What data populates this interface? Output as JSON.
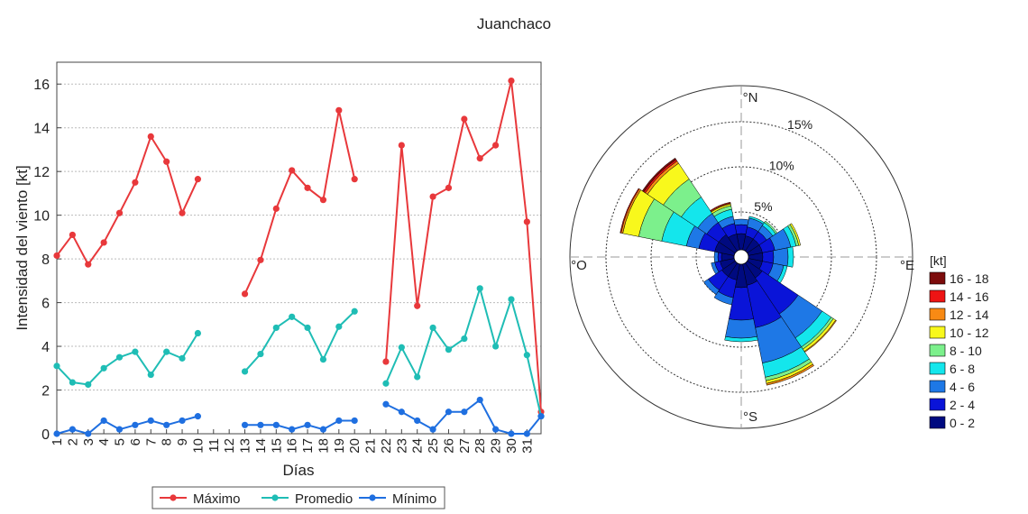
{
  "title": "Juanchaco",
  "chart_data": [
    {
      "type": "line",
      "xlabel": "Días",
      "ylabel": "Intensidad del viento [kt]",
      "xlim": [
        1,
        31
      ],
      "ylim": [
        0,
        17
      ],
      "x": [
        1,
        2,
        3,
        4,
        5,
        6,
        7,
        8,
        9,
        10,
        11,
        12,
        13,
        14,
        15,
        16,
        17,
        18,
        19,
        20,
        21,
        22,
        23,
        24,
        25,
        26,
        27,
        28,
        29,
        30,
        31
      ],
      "x_tick_labels": [
        "1",
        "2",
        "3",
        "4",
        "5",
        "6",
        "7",
        "8",
        "9",
        "10",
        "11",
        "12",
        "13",
        "14",
        "15",
        "16",
        "17",
        "18",
        "19",
        "20",
        "21",
        "22",
        "23",
        "24",
        "25",
        "26",
        "27",
        "28",
        "29",
        "30",
        "31"
      ],
      "y_ticks": [
        0,
        2,
        4,
        6,
        8,
        10,
        12,
        14,
        16
      ],
      "grid": "horizontal dotted",
      "legend_position": "bottom",
      "series": [
        {
          "name": "Máximo",
          "color": "#e8383b",
          "values": [
            8.15,
            9.1,
            7.75,
            8.75,
            10.1,
            11.5,
            13.6,
            12.45,
            10.1,
            11.65,
            null,
            null,
            6.4,
            7.95,
            10.3,
            12.05,
            11.25,
            10.7,
            14.8,
            11.65,
            null,
            3.3,
            13.2,
            5.85,
            10.85,
            11.25,
            14.4,
            12.6,
            13.2,
            16.15,
            9.7
          ],
          "end_value": 1.0
        },
        {
          "name": "Promedio",
          "color": "#1fbdb5",
          "values": [
            3.1,
            2.35,
            2.25,
            3.0,
            3.5,
            3.75,
            2.7,
            3.75,
            3.45,
            4.6,
            null,
            null,
            2.85,
            3.65,
            4.85,
            5.35,
            4.85,
            3.4,
            4.9,
            5.6,
            null,
            2.3,
            3.95,
            2.6,
            4.85,
            3.85,
            4.35,
            6.65,
            4.0,
            6.15,
            3.6
          ],
          "end_value": 0.8
        },
        {
          "name": "Mínimo",
          "color": "#1f6fe0",
          "values": [
            0.0,
            0.2,
            0.0,
            0.6,
            0.2,
            0.4,
            0.6,
            0.4,
            0.6,
            0.8,
            null,
            null,
            0.4,
            0.4,
            0.4,
            0.2,
            0.4,
            0.2,
            0.6,
            0.6,
            null,
            1.35,
            1.0,
            0.6,
            0.2,
            1.0,
            1.0,
            1.55,
            0.2,
            0.0,
            0.0
          ],
          "end_value": 0.8
        }
      ]
    },
    {
      "type": "wind_rose",
      "directions": [
        "N",
        "NNE",
        "NE",
        "ENE",
        "E",
        "ESE",
        "SE",
        "SSE",
        "S",
        "SSW",
        "SW",
        "WSW",
        "W",
        "WNW",
        "NW",
        "NNW"
      ],
      "direction_labels": {
        "N": "°N",
        "E": "°E",
        "S": "°S",
        "W": "°O"
      },
      "radial_ticks_percent": [
        5,
        10,
        15
      ],
      "radial_tick_labels": [
        "5%",
        "10%",
        "15%"
      ],
      "outer_ring_percent": 19,
      "legend_title": "[kt]",
      "bins": [
        {
          "label": "0 - 2",
          "color": "#000a80"
        },
        {
          "label": "2 - 4",
          "color": "#0a14d8"
        },
        {
          "label": "4 - 6",
          "color": "#1e78e6"
        },
        {
          "label": "6 - 8",
          "color": "#14e6ec"
        },
        {
          "label": "8 - 10",
          "color": "#7cf08c"
        },
        {
          "label": "10 - 12",
          "color": "#f8f81c"
        },
        {
          "label": "12 - 14",
          "color": "#f88a14"
        },
        {
          "label": "14 - 16",
          "color": "#ee1414"
        },
        {
          "label": "16 - 18",
          "color": "#7c0c0c"
        }
      ],
      "cumulative_percent": {
        "N": [
          2.6,
          3.6,
          4.2,
          4.2,
          4.2,
          4.2,
          4.2,
          4.2,
          4.2
        ],
        "NNE": [
          2.4,
          3.4,
          4.4,
          4.6,
          4.6,
          4.6,
          4.6,
          4.6,
          4.6
        ],
        "NE": [
          2.4,
          3.4,
          4.2,
          4.6,
          4.8,
          4.8,
          4.8,
          4.8,
          4.8
        ],
        "ENE": [
          2.4,
          3.8,
          5.6,
          6.2,
          6.5,
          6.7,
          6.7,
          6.7,
          6.7
        ],
        "E": [
          2.4,
          3.6,
          5.2,
          5.8,
          5.8,
          5.8,
          5.8,
          5.8,
          5.8
        ],
        "ESE": [
          2.4,
          3.6,
          4.8,
          5.2,
          5.2,
          5.2,
          5.2,
          5.2,
          5.2
        ],
        "SE": [
          2.8,
          7.6,
          10.8,
          12.0,
          12.3,
          12.6,
          12.7,
          12.7,
          12.7
        ],
        "SSE": [
          3.2,
          8.0,
          12.0,
          13.6,
          14.0,
          14.3,
          14.5,
          14.5,
          14.5
        ],
        "S": [
          3.4,
          7.0,
          9.0,
          9.4,
          9.4,
          9.4,
          9.4,
          9.4,
          9.4
        ],
        "SSW": [
          2.6,
          4.6,
          5.4,
          5.4,
          5.4,
          5.4,
          5.4,
          5.4,
          5.4
        ],
        "SW": [
          2.6,
          4.4,
          5.0,
          5.0,
          5.0,
          5.0,
          5.0,
          5.0,
          5.0
        ],
        "WSW": [
          2.4,
          3.0,
          3.4,
          3.4,
          3.4,
          3.4,
          3.4,
          3.4,
          3.4
        ],
        "W": [
          2.2,
          2.6,
          3.0,
          3.0,
          3.0,
          3.0,
          3.0,
          3.0,
          3.0
        ],
        "WNW": [
          3.0,
          4.8,
          6.2,
          9.0,
          11.6,
          13.4,
          13.6,
          13.7,
          13.7
        ],
        "NW": [
          3.0,
          4.6,
          5.8,
          8.0,
          10.4,
          12.5,
          12.8,
          13.0,
          13.2
        ],
        "NNW": [
          2.6,
          3.8,
          4.6,
          5.4,
          5.8,
          6.0,
          6.1,
          6.2,
          6.2
        ]
      }
    }
  ]
}
